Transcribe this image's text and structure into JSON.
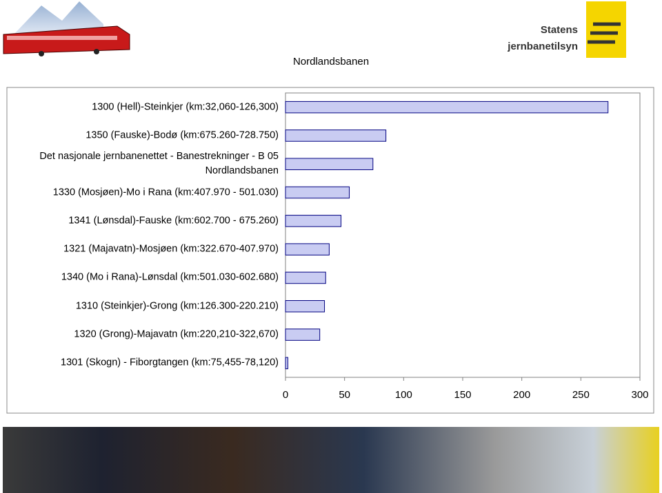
{
  "logo": {
    "lines": [
      "Statens",
      "jernbanetilsyn"
    ]
  },
  "chart_data": {
    "type": "bar",
    "orientation": "horizontal",
    "title": "Nordlandsbanen",
    "categories": [
      "1300 (Hell)-Steinkjer (km:32,060-126,300)",
      "1350 (Fauske)-Bodø (km:675.260-728.750)",
      "Det nasjonale jernbanenettet - Banestrekninger - B 05\nNordlandsbanen",
      "1330 (Mosjøen)-Mo i Rana (km:407.970 - 501.030)",
      "1341 (Lønsdal)-Fauske (km:602.700 - 675.260)",
      "1321 (Majavatn)-Mosjøen (km:322.670-407.970)",
      "1340 (Mo i Rana)-Lønsdal (km:501.030-602.680)",
      "1310 (Steinkjer)-Grong (km:126.300-220.210)",
      "1320 (Grong)-Majavatn (km:220,210-322,670)",
      "1301 (Skogn) - Fiborgtangen (km:75,455-78,120)"
    ],
    "values": [
      273,
      85,
      74,
      54,
      47,
      37,
      34,
      33,
      29,
      2
    ],
    "color": "#c9ccf2",
    "edge_color": "#000080",
    "xlim": [
      0,
      300
    ],
    "xticks": [
      0,
      50,
      100,
      150,
      200,
      250,
      300
    ],
    "grid": false
  }
}
